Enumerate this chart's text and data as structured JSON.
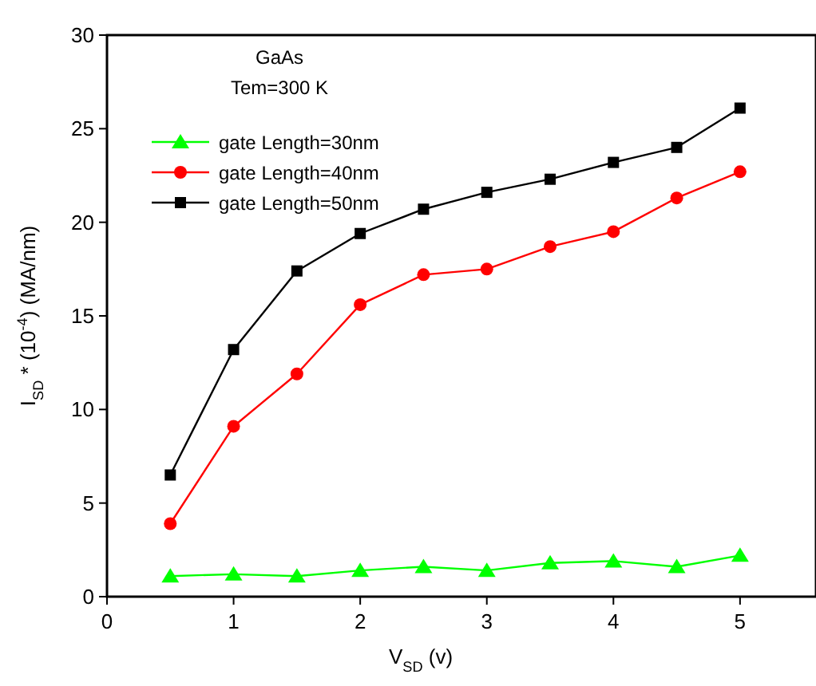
{
  "chart_data": {
    "type": "line",
    "xlabel": "V$_{SD}$  (v)",
    "ylabel": "I$_{SD}$ * (10$^{-4}$) (MA/nm)",
    "x": [
      0.5,
      1,
      1.5,
      2,
      2.5,
      3,
      3.5,
      4,
      4.5,
      5
    ],
    "xlim": [
      0,
      5.6
    ],
    "xticks": [
      0,
      1,
      2,
      3,
      4,
      5
    ],
    "ylim": [
      0,
      30
    ],
    "yticks": [
      0,
      5,
      10,
      15,
      20,
      25,
      30
    ],
    "legend": "top left",
    "grid": false,
    "line_style": "solid",
    "annotations": [
      "GaAs",
      "Tem=300 K"
    ],
    "series": [
      {
        "name": "gate Length=30nm",
        "color": "#00ff00",
        "marker": "triangle",
        "values": [
          1.1,
          1.2,
          1.1,
          1.4,
          1.6,
          1.4,
          1.8,
          1.9,
          1.6,
          2.2
        ]
      },
      {
        "name": "gate Length=40nm",
        "color": "#ff0000",
        "marker": "circle",
        "values": [
          3.9,
          9.1,
          11.9,
          15.6,
          17.2,
          17.5,
          18.7,
          19.5,
          21.3,
          22.7
        ]
      },
      {
        "name": "gate Length=50nm",
        "color": "#000000",
        "marker": "square",
        "values": [
          6.5,
          13.2,
          17.4,
          19.4,
          20.7,
          21.6,
          22.3,
          23.2,
          24.0,
          26.1
        ]
      }
    ]
  }
}
